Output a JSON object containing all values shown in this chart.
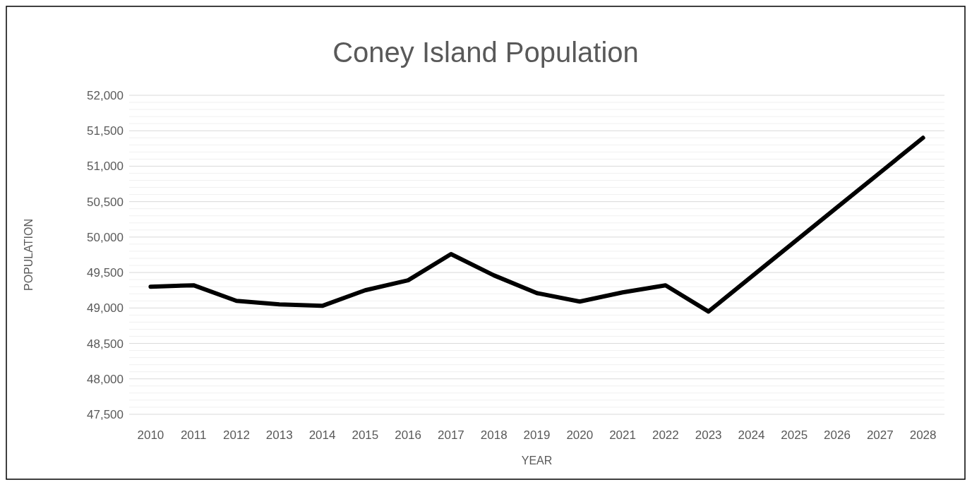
{
  "chart_data": {
    "type": "line",
    "title": "Coney Island Population",
    "xlabel": "YEAR",
    "ylabel": "POPULATION",
    "categories": [
      "2010",
      "2011",
      "2012",
      "2013",
      "2014",
      "2015",
      "2016",
      "2017",
      "2018",
      "2019",
      "2020",
      "2021",
      "2022",
      "2023",
      "2024",
      "2025",
      "2026",
      "2027",
      "2028"
    ],
    "series": [
      {
        "color": "#000000",
        "values": [
          49300,
          49320,
          49100,
          49050,
          49030,
          49250,
          49390,
          49760,
          49460,
          49210,
          49090,
          49220,
          49320,
          48950,
          49440,
          49930,
          50420,
          50910,
          51400
        ]
      }
    ],
    "ylim": [
      47500,
      52000
    ],
    "yticks": [
      {
        "value": 47500,
        "label": "47,500"
      },
      {
        "value": 47600,
        "label": null
      },
      {
        "value": 47700,
        "label": null
      },
      {
        "value": 47800,
        "label": null
      },
      {
        "value": 47900,
        "label": null
      },
      {
        "value": 48000,
        "label": "48,000"
      },
      {
        "value": 48100,
        "label": null
      },
      {
        "value": 48200,
        "label": null
      },
      {
        "value": 48300,
        "label": null
      },
      {
        "value": 48400,
        "label": null
      },
      {
        "value": 48500,
        "label": "48,500"
      },
      {
        "value": 48600,
        "label": null
      },
      {
        "value": 48700,
        "label": null
      },
      {
        "value": 48800,
        "label": null
      },
      {
        "value": 48900,
        "label": null
      },
      {
        "value": 49000,
        "label": "49,000"
      },
      {
        "value": 49100,
        "label": null
      },
      {
        "value": 49200,
        "label": null
      },
      {
        "value": 49300,
        "label": null
      },
      {
        "value": 49400,
        "label": null
      },
      {
        "value": 49500,
        "label": "49,500"
      },
      {
        "value": 49600,
        "label": null
      },
      {
        "value": 49700,
        "label": null
      },
      {
        "value": 49800,
        "label": null
      },
      {
        "value": 49900,
        "label": null
      },
      {
        "value": 50000,
        "label": "50,000"
      },
      {
        "value": 50100,
        "label": null
      },
      {
        "value": 50200,
        "label": null
      },
      {
        "value": 50300,
        "label": null
      },
      {
        "value": 50400,
        "label": null
      },
      {
        "value": 50500,
        "label": "50,500"
      },
      {
        "value": 50600,
        "label": null
      },
      {
        "value": 50700,
        "label": null
      },
      {
        "value": 50800,
        "label": null
      },
      {
        "value": 50900,
        "label": null
      },
      {
        "value": 51000,
        "label": "51,000"
      },
      {
        "value": 51100,
        "label": null
      },
      {
        "value": 51200,
        "label": null
      },
      {
        "value": 51300,
        "label": null
      },
      {
        "value": 51400,
        "label": null
      },
      {
        "value": 51500,
        "label": "51,500"
      },
      {
        "value": 51600,
        "label": null
      },
      {
        "value": 51700,
        "label": null
      },
      {
        "value": 51800,
        "label": null
      },
      {
        "value": 51900,
        "label": null
      },
      {
        "value": 52000,
        "label": "52,000"
      }
    ],
    "grid": "y",
    "line_style": "solid",
    "marker": "none"
  }
}
